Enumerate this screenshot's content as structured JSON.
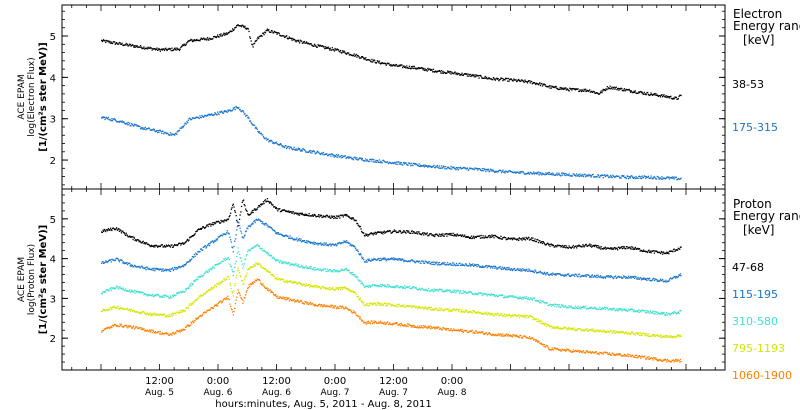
{
  "chart_data": [
    {
      "type": "scatter",
      "panel": "electron",
      "ylabel_lines": [
        "ACE EPAM",
        "log(Electron Flux)",
        "[1/(cm²s ster MeV)]"
      ],
      "yticks": [
        2,
        3,
        4,
        5
      ],
      "ylim": [
        1.3,
        5.75
      ],
      "legend_title": [
        "Electron",
        "Energy range"
      ],
      "legend_unit": "[keV]",
      "legend_position": "right",
      "series": [
        {
          "name": "38-53",
          "color": "#000000",
          "points": [
            [
              0,
              4.9
            ],
            [
              4,
              4.82
            ],
            [
              8,
              4.75
            ],
            [
              12,
              4.68
            ],
            [
              16,
              4.7
            ],
            [
              18,
              4.9
            ],
            [
              22,
              4.95
            ],
            [
              26,
              5.08
            ],
            [
              28,
              5.28
            ],
            [
              30,
              5.2
            ],
            [
              31,
              4.75
            ],
            [
              32,
              4.95
            ],
            [
              34,
              5.15
            ],
            [
              36,
              5.08
            ],
            [
              40,
              4.9
            ],
            [
              44,
              4.78
            ],
            [
              48,
              4.68
            ],
            [
              52,
              4.55
            ],
            [
              56,
              4.4
            ],
            [
              60,
              4.3
            ],
            [
              64,
              4.25
            ],
            [
              68,
              4.18
            ],
            [
              72,
              4.12
            ],
            [
              76,
              4.06
            ],
            [
              80,
              3.98
            ],
            [
              84,
              3.95
            ],
            [
              88,
              3.9
            ],
            [
              90,
              3.85
            ],
            [
              92,
              3.78
            ],
            [
              96,
              3.72
            ],
            [
              100,
              3.7
            ],
            [
              102,
              3.62
            ],
            [
              104,
              3.78
            ],
            [
              108,
              3.7
            ],
            [
              112,
              3.62
            ],
            [
              116,
              3.55
            ],
            [
              118,
              3.5
            ],
            [
              119,
              3.58
            ]
          ]
        },
        {
          "name": "175-315",
          "color": "#1874cd",
          "points": [
            [
              0,
              3.05
            ],
            [
              4,
              2.95
            ],
            [
              8,
              2.8
            ],
            [
              12,
              2.7
            ],
            [
              15,
              2.62
            ],
            [
              18,
              3.0
            ],
            [
              22,
              3.1
            ],
            [
              26,
              3.2
            ],
            [
              28,
              3.3
            ],
            [
              30,
              3.05
            ],
            [
              32,
              2.72
            ],
            [
              34,
              2.5
            ],
            [
              38,
              2.32
            ],
            [
              44,
              2.2
            ],
            [
              48,
              2.12
            ],
            [
              52,
              2.05
            ],
            [
              56,
              2.0
            ],
            [
              60,
              1.95
            ],
            [
              64,
              1.9
            ],
            [
              68,
              1.86
            ],
            [
              72,
              1.82
            ],
            [
              76,
              1.8
            ],
            [
              80,
              1.76
            ],
            [
              84,
              1.72
            ],
            [
              88,
              1.7
            ],
            [
              92,
              1.68
            ],
            [
              96,
              1.66
            ],
            [
              100,
              1.64
            ],
            [
              104,
              1.62
            ],
            [
              108,
              1.6
            ],
            [
              112,
              1.6
            ],
            [
              116,
              1.58
            ],
            [
              119,
              1.56
            ]
          ]
        }
      ]
    },
    {
      "type": "scatter",
      "panel": "proton",
      "ylabel_lines": [
        "ACE EPAM",
        "log(Proton Flux)",
        "[1/(cm²s ster MeV)]"
      ],
      "yticks": [
        2,
        3,
        4,
        5
      ],
      "ylim": [
        1.2,
        5.75
      ],
      "legend_title": [
        "Proton",
        "Energy range"
      ],
      "legend_unit": "[keV]",
      "legend_position": "right",
      "series": [
        {
          "name": "47-68",
          "color": "#000000",
          "points": [
            [
              0,
              4.7
            ],
            [
              3,
              4.78
            ],
            [
              6,
              4.55
            ],
            [
              10,
              4.35
            ],
            [
              14,
              4.32
            ],
            [
              17,
              4.4
            ],
            [
              20,
              4.75
            ],
            [
              23,
              4.9
            ],
            [
              26,
              5.0
            ],
            [
              27,
              5.4
            ],
            [
              28,
              4.85
            ],
            [
              29,
              5.5
            ],
            [
              30,
              5.1
            ],
            [
              32,
              5.3
            ],
            [
              34,
              5.5
            ],
            [
              36,
              5.25
            ],
            [
              40,
              5.15
            ],
            [
              44,
              5.1
            ],
            [
              48,
              5.05
            ],
            [
              50,
              5.1
            ],
            [
              52,
              5.0
            ],
            [
              54,
              4.6
            ],
            [
              56,
              4.65
            ],
            [
              60,
              4.7
            ],
            [
              64,
              4.68
            ],
            [
              68,
              4.6
            ],
            [
              72,
              4.62
            ],
            [
              76,
              4.55
            ],
            [
              80,
              4.58
            ],
            [
              84,
              4.5
            ],
            [
              88,
              4.52
            ],
            [
              92,
              4.35
            ],
            [
              96,
              4.3
            ],
            [
              100,
              4.35
            ],
            [
              104,
              4.25
            ],
            [
              108,
              4.3
            ],
            [
              112,
              4.2
            ],
            [
              116,
              4.15
            ],
            [
              119,
              4.3
            ]
          ]
        },
        {
          "name": "115-195",
          "color": "#1874cd",
          "points": [
            [
              0,
              3.9
            ],
            [
              3,
              4.0
            ],
            [
              6,
              3.85
            ],
            [
              10,
              3.75
            ],
            [
              14,
              3.72
            ],
            [
              17,
              3.85
            ],
            [
              20,
              4.2
            ],
            [
              23,
              4.45
            ],
            [
              26,
              4.7
            ],
            [
              27,
              4.2
            ],
            [
              28,
              4.95
            ],
            [
              29,
              4.5
            ],
            [
              30,
              4.8
            ],
            [
              32,
              5.0
            ],
            [
              34,
              4.85
            ],
            [
              36,
              4.65
            ],
            [
              40,
              4.5
            ],
            [
              44,
              4.4
            ],
            [
              48,
              4.35
            ],
            [
              50,
              4.45
            ],
            [
              52,
              4.3
            ],
            [
              54,
              3.95
            ],
            [
              56,
              4.0
            ],
            [
              60,
              4.0
            ],
            [
              64,
              3.95
            ],
            [
              68,
              3.9
            ],
            [
              72,
              3.88
            ],
            [
              76,
              3.85
            ],
            [
              80,
              3.8
            ],
            [
              84,
              3.75
            ],
            [
              88,
              3.72
            ],
            [
              92,
              3.62
            ],
            [
              96,
              3.6
            ],
            [
              100,
              3.58
            ],
            [
              104,
              3.55
            ],
            [
              108,
              3.55
            ],
            [
              112,
              3.5
            ],
            [
              116,
              3.45
            ],
            [
              119,
              3.62
            ]
          ]
        },
        {
          "name": "310-580",
          "color": "#40e0d0",
          "points": [
            [
              0,
              3.15
            ],
            [
              3,
              3.3
            ],
            [
              6,
              3.2
            ],
            [
              10,
              3.1
            ],
            [
              14,
              3.05
            ],
            [
              17,
              3.2
            ],
            [
              20,
              3.55
            ],
            [
              23,
              3.8
            ],
            [
              26,
              4.05
            ],
            [
              27,
              3.6
            ],
            [
              28,
              4.25
            ],
            [
              29,
              3.8
            ],
            [
              30,
              4.2
            ],
            [
              32,
              4.35
            ],
            [
              34,
              4.15
            ],
            [
              36,
              3.95
            ],
            [
              40,
              3.85
            ],
            [
              44,
              3.75
            ],
            [
              48,
              3.7
            ],
            [
              50,
              3.75
            ],
            [
              52,
              3.6
            ],
            [
              54,
              3.3
            ],
            [
              56,
              3.35
            ],
            [
              60,
              3.32
            ],
            [
              64,
              3.28
            ],
            [
              68,
              3.22
            ],
            [
              72,
              3.2
            ],
            [
              76,
              3.15
            ],
            [
              80,
              3.1
            ],
            [
              84,
              3.05
            ],
            [
              88,
              3.02
            ],
            [
              92,
              2.85
            ],
            [
              96,
              2.8
            ],
            [
              100,
              2.78
            ],
            [
              104,
              2.75
            ],
            [
              108,
              2.72
            ],
            [
              112,
              2.68
            ],
            [
              116,
              2.62
            ],
            [
              119,
              2.68
            ]
          ]
        },
        {
          "name": "795-1193",
          "color": "#d4e600",
          "points": [
            [
              0,
              2.7
            ],
            [
              3,
              2.8
            ],
            [
              6,
              2.72
            ],
            [
              10,
              2.62
            ],
            [
              14,
              2.58
            ],
            [
              17,
              2.72
            ],
            [
              20,
              3.05
            ],
            [
              23,
              3.3
            ],
            [
              26,
              3.55
            ],
            [
              27,
              3.1
            ],
            [
              28,
              3.8
            ],
            [
              29,
              3.35
            ],
            [
              30,
              3.75
            ],
            [
              32,
              3.9
            ],
            [
              34,
              3.7
            ],
            [
              36,
              3.5
            ],
            [
              40,
              3.4
            ],
            [
              44,
              3.3
            ],
            [
              48,
              3.25
            ],
            [
              50,
              3.28
            ],
            [
              52,
              3.15
            ],
            [
              54,
              2.85
            ],
            [
              56,
              2.88
            ],
            [
              60,
              2.85
            ],
            [
              64,
              2.8
            ],
            [
              68,
              2.75
            ],
            [
              72,
              2.72
            ],
            [
              76,
              2.68
            ],
            [
              80,
              2.62
            ],
            [
              84,
              2.58
            ],
            [
              88,
              2.55
            ],
            [
              92,
              2.3
            ],
            [
              96,
              2.25
            ],
            [
              100,
              2.22
            ],
            [
              104,
              2.18
            ],
            [
              108,
              2.15
            ],
            [
              112,
              2.1
            ],
            [
              116,
              2.05
            ],
            [
              119,
              2.08
            ]
          ]
        },
        {
          "name": "1060-1900",
          "color": "#ff7f00",
          "points": [
            [
              0,
              2.2
            ],
            [
              3,
              2.35
            ],
            [
              6,
              2.3
            ],
            [
              10,
              2.2
            ],
            [
              14,
              2.1
            ],
            [
              17,
              2.25
            ],
            [
              20,
              2.55
            ],
            [
              23,
              2.8
            ],
            [
              26,
              3.05
            ],
            [
              27,
              2.6
            ],
            [
              28,
              3.25
            ],
            [
              29,
              2.9
            ],
            [
              30,
              3.3
            ],
            [
              32,
              3.5
            ],
            [
              34,
              3.25
            ],
            [
              36,
              3.05
            ],
            [
              40,
              2.95
            ],
            [
              44,
              2.85
            ],
            [
              48,
              2.8
            ],
            [
              50,
              2.78
            ],
            [
              52,
              2.65
            ],
            [
              54,
              2.4
            ],
            [
              56,
              2.42
            ],
            [
              60,
              2.38
            ],
            [
              64,
              2.32
            ],
            [
              68,
              2.28
            ],
            [
              72,
              2.22
            ],
            [
              76,
              2.18
            ],
            [
              80,
              2.12
            ],
            [
              84,
              2.08
            ],
            [
              88,
              2.02
            ],
            [
              92,
              1.75
            ],
            [
              96,
              1.7
            ],
            [
              100,
              1.66
            ],
            [
              104,
              1.62
            ],
            [
              108,
              1.58
            ],
            [
              112,
              1.52
            ],
            [
              116,
              1.45
            ],
            [
              119,
              1.45
            ]
          ]
        }
      ]
    }
  ],
  "x_axis": {
    "xlim_hours": [
      -8,
      128
    ],
    "ticks": [
      {
        "hours": 12,
        "time": "12:00",
        "day": "Aug. 5"
      },
      {
        "hours": 24,
        "time": "0:00",
        "day": "Aug. 6"
      },
      {
        "hours": 36,
        "time": "12:00",
        "day": "Aug. 6"
      },
      {
        "hours": 48,
        "time": "0:00",
        "day": "Aug. 7"
      },
      {
        "hours": 60,
        "time": "12:00",
        "day": "Aug. 7"
      },
      {
        "hours": 72,
        "time": "0:00",
        "day": "Aug. 8"
      }
    ],
    "xlabel": "hours:minutes, Aug.  5, 2011 - Aug.  8, 2011"
  }
}
